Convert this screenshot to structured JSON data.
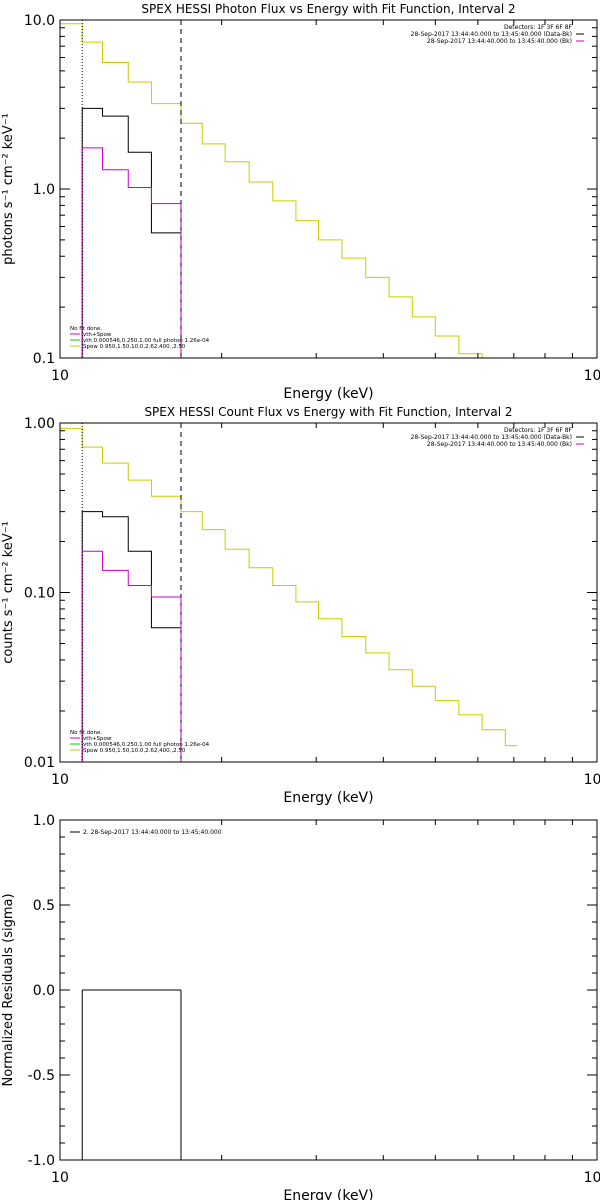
{
  "colors": {
    "data": "#000000",
    "background": "#cc00cc",
    "model": "#cccc00",
    "legend_bk_line": "#cc00cc",
    "legend_vth_line": "#00cc00",
    "legend_spow_line": "#cccc00"
  },
  "chart_data": [
    {
      "type": "line",
      "title": "SPEX HESSI Photon Flux vs Energy with Fit Function, Interval 2",
      "xlabel": "Energy (keV)",
      "ylabel": "photons s⁻¹ cm⁻² keV⁻¹",
      "xscale": "log",
      "yscale": "log",
      "xlim": [
        10,
        100
      ],
      "ylim": [
        0.1,
        10
      ],
      "xticks": [
        {
          "value": 10,
          "label": "10"
        },
        {
          "value": 100,
          "label": "100"
        }
      ],
      "yticks": [
        {
          "value": 0.1,
          "label": "0.1"
        },
        {
          "value": 1,
          "label": "1.0"
        },
        {
          "value": 10,
          "label": "10.0"
        }
      ],
      "info_text": [
        "Detectors: 1F 3F 6F 8F",
        "28-Sep-2017 13:44:40.000 to 13:45:40.000 (Data-Bk)",
        "28-Sep-2017 13:44:40.000 to 13:45:40.000 (Bk)"
      ],
      "legend_text": [
        "No fit done.",
        "vth+Spow",
        "vth 0.000546,0.250,1.00  full photon 1.26e-04",
        "Spow 0.950,1.50,10.0,2.62,400.,2.50"
      ],
      "range_markers_kev": [
        11.0,
        16.8
      ],
      "series": [
        {
          "name": "Data-Bk",
          "color": "#000000",
          "edges": [
            11.0,
            12.0,
            13.4,
            14.8,
            16.8
          ],
          "values": [
            3.0,
            2.7,
            1.65,
            0.55
          ]
        },
        {
          "name": "Bk",
          "color": "#cc00cc",
          "edges": [
            11.0,
            12.0,
            13.4,
            14.8,
            16.8
          ],
          "values": [
            1.75,
            1.3,
            1.02,
            0.82
          ]
        },
        {
          "name": "vth+Spow",
          "color": "#cccc00",
          "edges": [
            10.0,
            11.0,
            12.0,
            13.4,
            14.8,
            16.8,
            18.4,
            20.3,
            22.5,
            24.9,
            27.5,
            30.3,
            33.5,
            37.1,
            41.0,
            45.3,
            50.0,
            55.3,
            61.1,
            65.0
          ],
          "values": [
            9.5,
            7.4,
            5.6,
            4.3,
            3.2,
            2.45,
            1.85,
            1.45,
            1.1,
            0.85,
            0.65,
            0.5,
            0.39,
            0.3,
            0.23,
            0.175,
            0.135,
            0.106,
            0.1
          ]
        }
      ]
    },
    {
      "type": "line",
      "title": "SPEX HESSI Count Flux vs Energy with Fit Function, Interval 2",
      "xlabel": "Energy (keV)",
      "ylabel": "counts s⁻¹ cm⁻² keV⁻¹",
      "xscale": "log",
      "yscale": "log",
      "xlim": [
        10,
        100
      ],
      "ylim": [
        0.01,
        1
      ],
      "xticks": [
        {
          "value": 10,
          "label": "10"
        },
        {
          "value": 100,
          "label": "100"
        }
      ],
      "yticks": [
        {
          "value": 0.01,
          "label": "0.01"
        },
        {
          "value": 0.1,
          "label": "0.10"
        },
        {
          "value": 1,
          "label": "1.00"
        }
      ],
      "info_text": [
        "Detectors: 1F 3F 6F 8F",
        "28-Sep-2017 13:44:40.000 to 13:45:40.000 (Data-Bk)",
        "28-Sep-2017 13:44:40.000 to 13:45:40.000 (Bk)"
      ],
      "legend_text": [
        "No fit done.",
        "vth+Spow",
        "vth 0.000546,0.250,1.00  full photon 1.26e-04",
        "Spow 0.950,1.50,10.0,2.62,400.,2.50"
      ],
      "range_markers_kev": [
        11.0,
        16.8
      ],
      "series": [
        {
          "name": "Data-Bk",
          "color": "#000000",
          "edges": [
            11.0,
            12.0,
            13.4,
            14.8,
            16.8
          ],
          "values": [
            0.3,
            0.28,
            0.175,
            0.062
          ]
        },
        {
          "name": "Bk",
          "color": "#cc00cc",
          "edges": [
            11.0,
            12.0,
            13.4,
            14.8,
            16.8
          ],
          "values": [
            0.175,
            0.135,
            0.11,
            0.094
          ]
        },
        {
          "name": "vth+Spow",
          "color": "#cccc00",
          "edges": [
            10.0,
            11.0,
            12.0,
            13.4,
            14.8,
            16.8,
            18.4,
            20.3,
            22.5,
            24.9,
            27.5,
            30.3,
            33.5,
            37.1,
            41.0,
            45.3,
            50.0,
            55.3,
            61.1,
            67.5,
            71.0
          ],
          "values": [
            0.93,
            0.72,
            0.58,
            0.46,
            0.37,
            0.3,
            0.235,
            0.18,
            0.14,
            0.11,
            0.088,
            0.07,
            0.055,
            0.044,
            0.035,
            0.028,
            0.023,
            0.019,
            0.0155,
            0.0125
          ]
        }
      ]
    },
    {
      "type": "line",
      "title": "",
      "xlabel": "Energy (keV)",
      "ylabel": "Normalized Residuals (sigma)",
      "xscale": "log",
      "yscale": "linear",
      "xlim": [
        10,
        100
      ],
      "ylim": [
        -1,
        1
      ],
      "xticks": [
        {
          "value": 10,
          "label": "10"
        },
        {
          "value": 100,
          "label": "100"
        }
      ],
      "yticks": [
        {
          "value": -1,
          "label": "-1.0"
        },
        {
          "value": -0.5,
          "label": "-0.5"
        },
        {
          "value": 0,
          "label": "0.0"
        },
        {
          "value": 0.5,
          "label": "0.5"
        },
        {
          "value": 1,
          "label": "1.0"
        }
      ],
      "legend_text": [
        "2. 28-Sep-2017 13:44:40.000 to 13:45:40.000"
      ],
      "series": [
        {
          "name": "",
          "color": "#000000",
          "edges": [
            11.0,
            12.0,
            13.4,
            14.8,
            16.8
          ],
          "values": [
            0,
            0,
            0,
            0
          ]
        }
      ]
    }
  ]
}
